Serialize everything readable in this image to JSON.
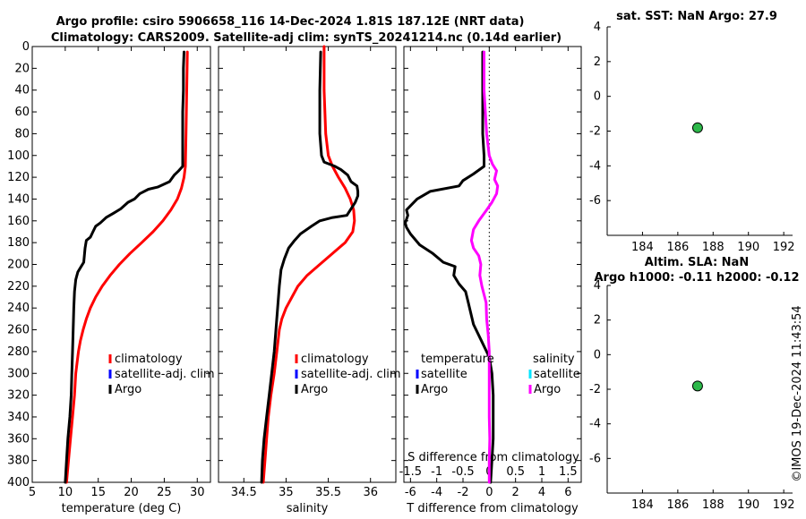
{
  "header": {
    "title_line1": "Argo profile: csiro 5906658_116 14-Dec-2024 1.81S 187.12E (NRT data)",
    "title_line2": "Climatology: CARS2009. Satellite-adj clim: synTS_20241214.nc (0.14d earlier)"
  },
  "footer": {
    "stamp": "©IMOS 19-Dec-2024 11:43:54"
  },
  "colors": {
    "climatology": "#ff0000",
    "satellite": "#0000ff",
    "argo": "#000000",
    "sal_satellite": "#00e5ff",
    "sal_argo": "#ff00ff",
    "marker": "#2db84a"
  },
  "chart_data": [
    {
      "id": "temperature",
      "type": "line",
      "xlabel": "temperature (deg C)",
      "ylabel": "depth",
      "xlim": [
        5,
        32
      ],
      "ylim": [
        400,
        0
      ],
      "xticks": [
        5,
        10,
        15,
        20,
        25,
        30
      ],
      "yticks": [
        0,
        20,
        40,
        60,
        80,
        100,
        120,
        140,
        160,
        180,
        200,
        220,
        240,
        260,
        280,
        300,
        320,
        340,
        360,
        380,
        400
      ],
      "legend": [
        "climatology",
        "satellite-adj. clim",
        "Argo"
      ],
      "series": [
        {
          "name": "climatology",
          "color": "#ff0000",
          "points": [
            [
              28.5,
              5
            ],
            [
              28.4,
              40
            ],
            [
              28.3,
              80
            ],
            [
              28.2,
              110
            ],
            [
              28,
              120
            ],
            [
              27.6,
              130
            ],
            [
              27,
              140
            ],
            [
              26,
              150
            ],
            [
              24.8,
              160
            ],
            [
              23.3,
              170
            ],
            [
              21.6,
              180
            ],
            [
              19.8,
              190
            ],
            [
              18.2,
              200
            ],
            [
              16.8,
              210
            ],
            [
              15.6,
              220
            ],
            [
              14.6,
              230
            ],
            [
              13.8,
              240
            ],
            [
              13.2,
              250
            ],
            [
              12.7,
              260
            ],
            [
              12.3,
              270
            ],
            [
              12.0,
              280
            ],
            [
              11.8,
              290
            ],
            [
              11.6,
              300
            ],
            [
              11.4,
              320
            ],
            [
              11.1,
              340
            ],
            [
              10.8,
              360
            ],
            [
              10.5,
              380
            ],
            [
              10.2,
              400
            ]
          ]
        },
        {
          "name": "Argo",
          "color": "#000000",
          "points": [
            [
              28,
              5
            ],
            [
              27.9,
              20
            ],
            [
              27.9,
              40
            ],
            [
              27.8,
              60
            ],
            [
              27.8,
              80
            ],
            [
              27.8,
              100
            ],
            [
              27.8,
              110
            ],
            [
              27.2,
              114
            ],
            [
              26.5,
              118
            ],
            [
              25.8,
              124
            ],
            [
              24,
              129
            ],
            [
              22.6,
              131
            ],
            [
              21.3,
              135
            ],
            [
              20.5,
              140
            ],
            [
              19.5,
              143
            ],
            [
              18.4,
              149
            ],
            [
              17.3,
              153
            ],
            [
              16.2,
              157
            ],
            [
              15.3,
              162
            ],
            [
              14.6,
              165
            ],
            [
              14.2,
              170
            ],
            [
              13.8,
              175
            ],
            [
              13.2,
              178
            ],
            [
              13,
              185
            ],
            [
              12.9,
              192
            ],
            [
              12.8,
              198
            ],
            [
              12.3,
              203
            ],
            [
              11.9,
              207
            ],
            [
              11.6,
              214
            ],
            [
              11.4,
              225
            ],
            [
              11.3,
              240
            ],
            [
              11.2,
              260
            ],
            [
              11.1,
              280
            ],
            [
              11.0,
              300
            ],
            [
              10.9,
              320
            ],
            [
              10.7,
              340
            ],
            [
              10.4,
              360
            ],
            [
              10.2,
              380
            ],
            [
              10.0,
              400
            ]
          ]
        }
      ]
    },
    {
      "id": "salinity",
      "type": "line",
      "xlabel": "salinity",
      "ylabel": "depth",
      "xlim": [
        34.2,
        36.3
      ],
      "ylim": [
        400,
        0
      ],
      "xticks": [
        34.5,
        35,
        35.5,
        36
      ],
      "yticks": [
        0,
        20,
        40,
        60,
        80,
        100,
        120,
        140,
        160,
        180,
        200,
        220,
        240,
        260,
        280,
        300,
        320,
        340,
        360,
        380,
        400
      ],
      "legend": [
        "climatology",
        "satellite-adj. clim",
        "Argo"
      ],
      "series": [
        {
          "name": "climatology",
          "color": "#ff0000",
          "points": [
            [
              35.45,
              0
            ],
            [
              35.45,
              40
            ],
            [
              35.47,
              80
            ],
            [
              35.5,
              100
            ],
            [
              35.55,
              110
            ],
            [
              35.62,
              120
            ],
            [
              35.7,
              130
            ],
            [
              35.76,
              140
            ],
            [
              35.8,
              150
            ],
            [
              35.81,
              160
            ],
            [
              35.79,
              170
            ],
            [
              35.7,
              180
            ],
            [
              35.55,
              190
            ],
            [
              35.4,
              200
            ],
            [
              35.25,
              210
            ],
            [
              35.14,
              220
            ],
            [
              35.07,
              230
            ],
            [
              35.0,
              240
            ],
            [
              34.95,
              250
            ],
            [
              34.92,
              260
            ],
            [
              34.89,
              280
            ],
            [
              34.86,
              300
            ],
            [
              34.82,
              320
            ],
            [
              34.79,
              340
            ],
            [
              34.77,
              360
            ],
            [
              34.75,
              380
            ],
            [
              34.73,
              400
            ]
          ]
        },
        {
          "name": "Argo",
          "color": "#000000",
          "points": [
            [
              35.41,
              5
            ],
            [
              35.4,
              40
            ],
            [
              35.4,
              80
            ],
            [
              35.42,
              100
            ],
            [
              35.45,
              106
            ],
            [
              35.58,
              110
            ],
            [
              35.65,
              113
            ],
            [
              35.73,
              118
            ],
            [
              35.77,
              124
            ],
            [
              35.84,
              128
            ],
            [
              35.85,
              133
            ],
            [
              35.85,
              137
            ],
            [
              35.82,
              143
            ],
            [
              35.72,
              155
            ],
            [
              35.55,
              157
            ],
            [
              35.4,
              160
            ],
            [
              35.3,
              165
            ],
            [
              35.17,
              172
            ],
            [
              35.1,
              178
            ],
            [
              35.03,
              185
            ],
            [
              34.98,
              195
            ],
            [
              34.94,
              205
            ],
            [
              34.92,
              220
            ],
            [
              34.9,
              240
            ],
            [
              34.88,
              260
            ],
            [
              34.86,
              280
            ],
            [
              34.83,
              300
            ],
            [
              34.8,
              320
            ],
            [
              34.77,
              340
            ],
            [
              34.74,
              360
            ],
            [
              34.72,
              380
            ],
            [
              34.71,
              400
            ]
          ]
        }
      ]
    },
    {
      "id": "difference",
      "type": "line",
      "xlabel": "T difference from climatology",
      "xlabel_top": "S difference from climatology",
      "ylabel": "depth",
      "xlim": [
        -6.5,
        7
      ],
      "xlim_top": [
        -1.625,
        1.75
      ],
      "ylim": [
        400,
        0
      ],
      "xticks": [
        -6,
        -4,
        -2,
        0,
        2,
        4,
        6
      ],
      "xticks_top": [
        "-1.5",
        "-1",
        "-0.5",
        "0",
        "0.5",
        "1",
        "1.5"
      ],
      "yticks": [
        0,
        20,
        40,
        60,
        80,
        100,
        120,
        140,
        160,
        180,
        200,
        220,
        240,
        260,
        280,
        300,
        320,
        340,
        360,
        380,
        400
      ],
      "legend": {
        "temperature_title": "temperature",
        "salinity_title": "salinity",
        "temperature": [
          "satellite",
          "Argo"
        ],
        "salinity": [
          "satellite",
          "Argo"
        ]
      },
      "series": [
        {
          "name": "T Argo",
          "color": "#000000",
          "points": [
            [
              -0.5,
              5
            ],
            [
              -0.5,
              40
            ],
            [
              -0.5,
              80
            ],
            [
              -0.4,
              100
            ],
            [
              -0.4,
              110
            ],
            [
              -1.2,
              117
            ],
            [
              -2,
              123
            ],
            [
              -2.3,
              128
            ],
            [
              -4.5,
              133
            ],
            [
              -5.5,
              140
            ],
            [
              -6.3,
              150
            ],
            [
              -6.2,
              155
            ],
            [
              -6.4,
              162
            ],
            [
              -6.3,
              166
            ],
            [
              -6,
              172
            ],
            [
              -5.3,
              182
            ],
            [
              -4.3,
              190
            ],
            [
              -3.5,
              198
            ],
            [
              -2.6,
              202
            ],
            [
              -2.7,
              210
            ],
            [
              -2.3,
              218
            ],
            [
              -1.8,
              225
            ],
            [
              -1.6,
              235
            ],
            [
              -1.2,
              255
            ],
            [
              -0.6,
              270
            ],
            [
              0,
              285
            ],
            [
              0.2,
              300
            ],
            [
              0.3,
              320
            ],
            [
              0.3,
              340
            ],
            [
              0.3,
              360
            ],
            [
              0.2,
              380
            ],
            [
              0.1,
              400
            ]
          ]
        },
        {
          "name": "S Argo",
          "color": "#ff00ff",
          "points": [
            [
              -0.1,
              5
            ],
            [
              -0.1,
              40
            ],
            [
              -0.05,
              80
            ],
            [
              0,
              100
            ],
            [
              0.06,
              108
            ],
            [
              0.14,
              114
            ],
            [
              0.1,
              122
            ],
            [
              0.16,
              128
            ],
            [
              0.14,
              135
            ],
            [
              0.05,
              143
            ],
            [
              -0.05,
              150
            ],
            [
              -0.2,
              160
            ],
            [
              -0.3,
              168
            ],
            [
              -0.34,
              178
            ],
            [
              -0.3,
              185
            ],
            [
              -0.2,
              192
            ],
            [
              -0.16,
              200
            ],
            [
              -0.18,
              210
            ],
            [
              -0.14,
              220
            ],
            [
              -0.06,
              235
            ],
            [
              -0.05,
              250
            ],
            [
              -0.02,
              265
            ],
            [
              0,
              280
            ],
            [
              0,
              300
            ],
            [
              0,
              320
            ],
            [
              0,
              340
            ],
            [
              0.01,
              360
            ],
            [
              0,
              380
            ],
            [
              0,
              400
            ]
          ]
        }
      ]
    },
    {
      "id": "sst",
      "type": "scatter",
      "title": "sat. SST: NaN Argo: 27.9",
      "xlim": [
        182,
        192.5
      ],
      "ylim": [
        -8,
        4
      ],
      "xticks": [
        184,
        186,
        188,
        190,
        192
      ],
      "yticks": [
        4,
        2,
        0,
        -2,
        -4,
        -6
      ],
      "points": [
        [
          187.12,
          -1.81
        ]
      ]
    },
    {
      "id": "sla",
      "type": "scatter",
      "title": "Altim. SLA: NaN",
      "subtitle": "Argo h1000: -0.11 h2000: -0.12",
      "xlim": [
        182,
        192.5
      ],
      "ylim": [
        -8,
        4
      ],
      "xticks": [
        184,
        186,
        188,
        190,
        192
      ],
      "yticks": [
        4,
        2,
        0,
        -2,
        -4,
        -6
      ],
      "points": [
        [
          187.12,
          -1.81
        ]
      ]
    }
  ]
}
